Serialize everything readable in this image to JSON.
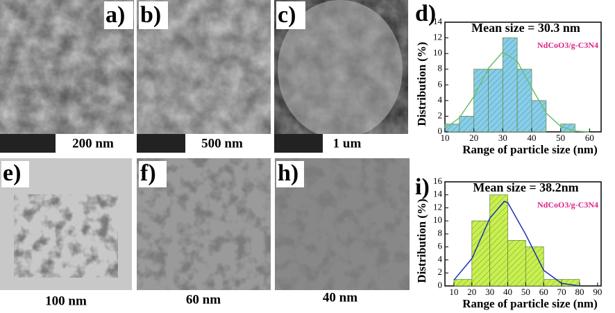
{
  "panels": {
    "a": "a)",
    "b": "b)",
    "c": "c)",
    "d": "d)",
    "e": "e)",
    "f": "f)",
    "h": "h)",
    "i": "i)"
  },
  "scales": {
    "a": "200 nm",
    "b": "500 nm",
    "c": "1 um",
    "e": "100 nm",
    "f": "60 nm",
    "h": "40 nm"
  },
  "chart_data": [
    {
      "type": "histogram",
      "annotation": "Mean size = 30.3 nm",
      "x_label": "Range of particle size (nm)",
      "y_label": "Distribution (%)",
      "bins": [
        10,
        15,
        20,
        25,
        30,
        35,
        40,
        45,
        50,
        55
      ],
      "series": [
        {
          "name": "NdCoO3/g-C3N4",
          "color": "#87ceeb",
          "values": [
            1,
            2,
            8,
            8,
            12,
            8,
            4,
            0,
            1
          ]
        }
      ],
      "fit": {
        "color": "#6cbf6c",
        "x": [
          10,
          15,
          20,
          25,
          30,
          35,
          40,
          45,
          50,
          55,
          60
        ],
        "values": [
          0.4,
          1.8,
          4.5,
          8.1,
          10.2,
          9.0,
          5.6,
          2.4,
          0.7,
          0.1,
          0
        ]
      },
      "xlim": [
        10,
        64
      ],
      "xticks": [
        10,
        20,
        30,
        40,
        50,
        60
      ],
      "ylim": [
        0,
        14
      ],
      "yticks": [
        0,
        2,
        4,
        6,
        8,
        10,
        12,
        14
      ]
    },
    {
      "type": "histogram",
      "annotation": "Mean size = 38.2nm",
      "x_label": "Range of particle size (nm)",
      "y_label": "Distribution (%)",
      "bins": [
        10,
        20,
        30,
        40,
        50,
        60,
        70,
        80
      ],
      "series": [
        {
          "name": "NdCoO3/g-C3N4",
          "color": "#c8f050",
          "values": [
            1,
            10,
            14,
            7,
            6,
            1,
            1
          ]
        }
      ],
      "fit": {
        "color": "#1a2fb0",
        "x": [
          10,
          20,
          30,
          38,
          40,
          50,
          60,
          70,
          80
        ],
        "values": [
          0.9,
          4.2,
          10.4,
          13,
          12.8,
          7.9,
          2.4,
          0.4,
          0
        ]
      },
      "xlim": [
        5,
        92
      ],
      "xticks": [
        10,
        20,
        30,
        40,
        50,
        60,
        70,
        80,
        90
      ],
      "ylim": [
        0,
        16
      ],
      "yticks": [
        0,
        2,
        4,
        6,
        8,
        10,
        12,
        14,
        16
      ]
    }
  ]
}
